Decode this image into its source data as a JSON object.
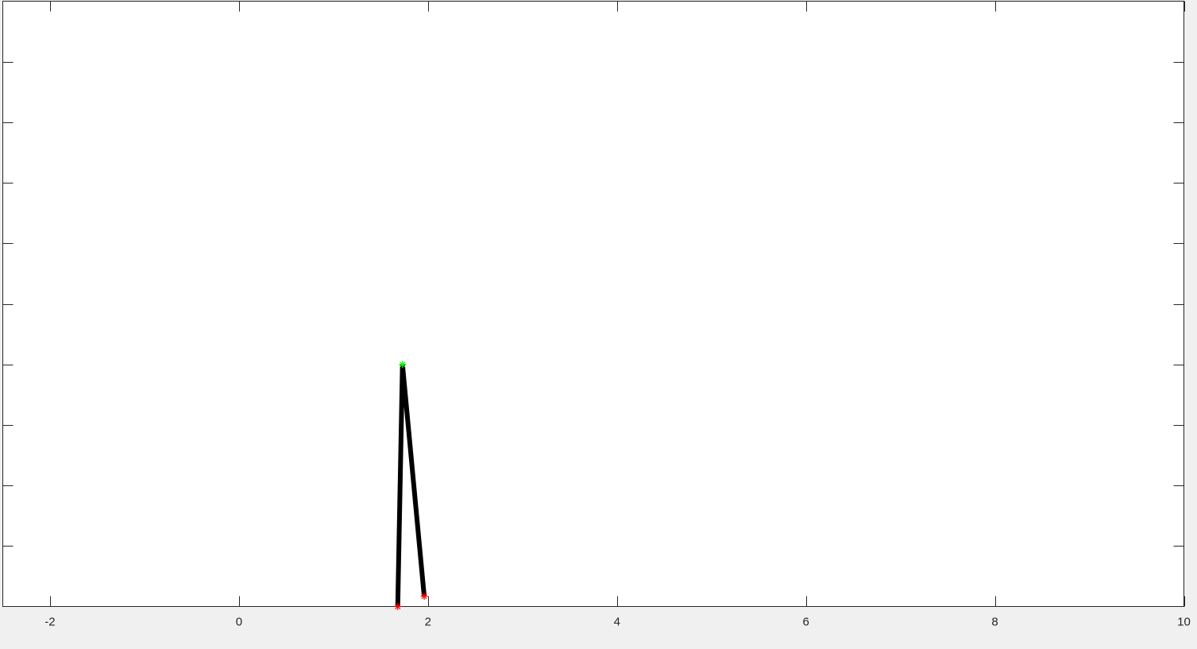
{
  "chart_data": {
    "type": "line",
    "title": "",
    "xlabel": "",
    "ylabel": "",
    "xlim": [
      -2.5,
      10
    ],
    "ylim": [
      0,
      10
    ],
    "x_ticks": [
      -2,
      0,
      2,
      4,
      6,
      8,
      10
    ],
    "x_tick_labels": [
      "-2",
      "0",
      "2",
      "4",
      "6",
      "8",
      "10"
    ],
    "y_ticks": [
      0,
      1,
      2,
      3,
      4,
      5,
      6,
      7,
      8,
      9,
      10
    ],
    "y_tick_labels_visible": false,
    "grid": false,
    "box": true,
    "series": [
      {
        "style": "solid",
        "color": "#000000",
        "x": [
          1.68,
          1.73,
          1.96
        ],
        "y": [
          0.0,
          4.0,
          0.17
        ]
      }
    ],
    "markers": [
      {
        "x": 1.68,
        "y": 0.0,
        "symbol": "asterisk",
        "color": "#ff0000"
      },
      {
        "x": 1.96,
        "y": 0.17,
        "symbol": "asterisk",
        "color": "#ff0000"
      },
      {
        "x": 1.73,
        "y": 4.0,
        "symbol": "asterisk",
        "color": "#00ff00"
      }
    ]
  }
}
